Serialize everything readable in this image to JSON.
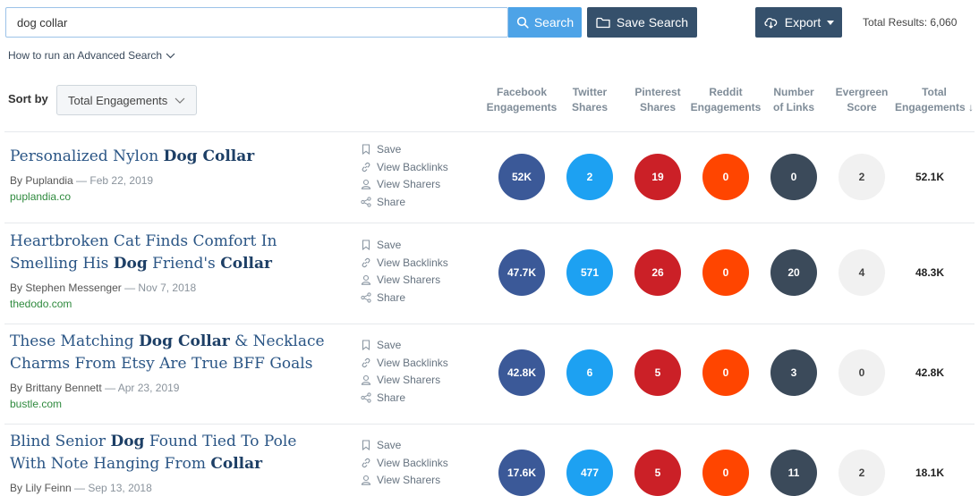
{
  "search": {
    "value": "dog collar",
    "button_label": "Search"
  },
  "toolbar": {
    "save_search_label": "Save Search",
    "export_label": "Export"
  },
  "total_results": "Total Results: 6,060",
  "advanced_search_link": "How to run an Advanced Search",
  "sort": {
    "label": "Sort by",
    "selected": "Total Engagements"
  },
  "columns": [
    {
      "line1": "Facebook",
      "line2": "Engagements"
    },
    {
      "line1": "Twitter",
      "line2": "Shares"
    },
    {
      "line1": "Pinterest",
      "line2": "Shares"
    },
    {
      "line1": "Reddit",
      "line2": "Engagements"
    },
    {
      "line1": "Number",
      "line2": "of Links"
    },
    {
      "line1": "Evergreen",
      "line2": "Score"
    },
    {
      "line1": "Total",
      "line2": "Engagements ↓"
    }
  ],
  "actions": {
    "save": "Save",
    "backlinks": "View Backlinks",
    "sharers": "View Sharers",
    "share": "Share"
  },
  "results": [
    {
      "title_parts": [
        {
          "text": "Personalized Nylon ",
          "bold": false
        },
        {
          "text": "Dog Collar",
          "bold": true
        }
      ],
      "author": "By Puplandia",
      "date": " — Feb 22, 2019",
      "domain": "puplandia.co",
      "facebook": "52K",
      "twitter": "2",
      "pinterest": "19",
      "reddit": "0",
      "links": "0",
      "evergreen": "2",
      "total": "52.1K"
    },
    {
      "title_parts": [
        {
          "text": "Heartbroken Cat Finds Comfort In Smelling His ",
          "bold": false
        },
        {
          "text": "Dog",
          "bold": true
        },
        {
          "text": " Friend's ",
          "bold": false
        },
        {
          "text": "Collar",
          "bold": true
        }
      ],
      "author": "By Stephen Messenger",
      "date": " — Nov 7, 2018",
      "domain": "thedodo.com",
      "facebook": "47.7K",
      "twitter": "571",
      "pinterest": "26",
      "reddit": "0",
      "links": "20",
      "evergreen": "4",
      "total": "48.3K"
    },
    {
      "title_parts": [
        {
          "text": "These Matching ",
          "bold": false
        },
        {
          "text": "Dog Collar",
          "bold": true
        },
        {
          "text": " & Necklace Charms From Etsy Are True BFF Goals",
          "bold": false
        }
      ],
      "author": "By Brittany Bennett",
      "date": " — Apr 23, 2019",
      "domain": "bustle.com",
      "facebook": "42.8K",
      "twitter": "6",
      "pinterest": "5",
      "reddit": "0",
      "links": "3",
      "evergreen": "0",
      "total": "42.8K"
    },
    {
      "title_parts": [
        {
          "text": "Blind Senior ",
          "bold": false
        },
        {
          "text": "Dog",
          "bold": true
        },
        {
          "text": " Found Tied To Pole With Note Hanging From ",
          "bold": false
        },
        {
          "text": "Collar",
          "bold": true
        }
      ],
      "author": "By Lily Feinn",
      "date": " — Sep 13, 2018",
      "domain": "",
      "facebook": "17.6K",
      "twitter": "477",
      "pinterest": "5",
      "reddit": "0",
      "links": "11",
      "evergreen": "2",
      "total": "18.1K"
    }
  ],
  "colors": {
    "facebook": "#3b5998",
    "twitter": "#1da1f2",
    "pinterest": "#cb2027",
    "reddit": "#ff4500",
    "links": "#3b4a5a",
    "evergreen": "#f1f1f1",
    "primary_button": "#4da3e7",
    "dark_button": "#35506b",
    "title_link": "#2a5585",
    "domain_link": "#2f8a3e"
  }
}
